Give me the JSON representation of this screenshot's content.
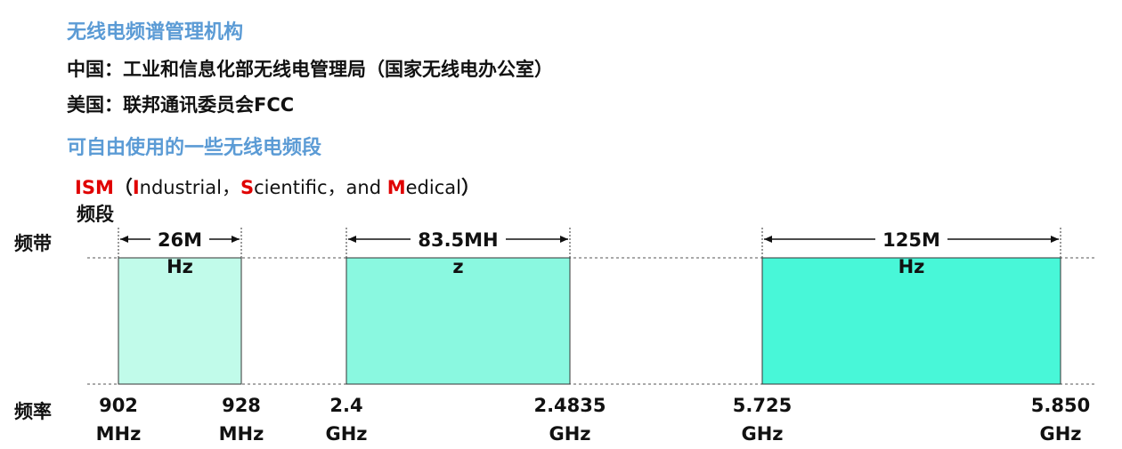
{
  "title1": "无线电频谱管理机构",
  "china": "中国：工业和信息化部无线电管理局（国家无线电办公室）",
  "usa": "美国：联邦通讯委员会FCC",
  "title2": "可自由使用的一些无线电频段",
  "ism": {
    "abbr": "ISM",
    "open": "（",
    "i_letter": "I",
    "i_rest": "ndustrial，",
    "s_letter": "S",
    "s_rest": "cientific，and ",
    "m_letter": "M",
    "m_rest": "edical",
    "close": "）",
    "line2": "频段"
  },
  "label_band": "频带",
  "label_freq": "频率",
  "bands": [
    {
      "bw_line1": "26M",
      "bw_line2": "Hz",
      "start_val": "902",
      "start_unit": "MHz",
      "end_val": "928",
      "end_unit": "MHz",
      "color": "#c1fbea"
    },
    {
      "bw_line1": "83.5MH",
      "bw_line2": "z",
      "start_val": "2.4",
      "start_unit": "GHz",
      "end_val": "2.4835",
      "end_unit": "GHz",
      "color": "#8af8e0"
    },
    {
      "bw_line1": "125M",
      "bw_line2": "Hz",
      "start_val": "5.725",
      "start_unit": "GHz",
      "end_val": "5.850",
      "end_unit": "GHz",
      "color": "#48f7d8"
    }
  ],
  "colors": {
    "heading": "#5b9bd5",
    "accent": "#e00000"
  }
}
